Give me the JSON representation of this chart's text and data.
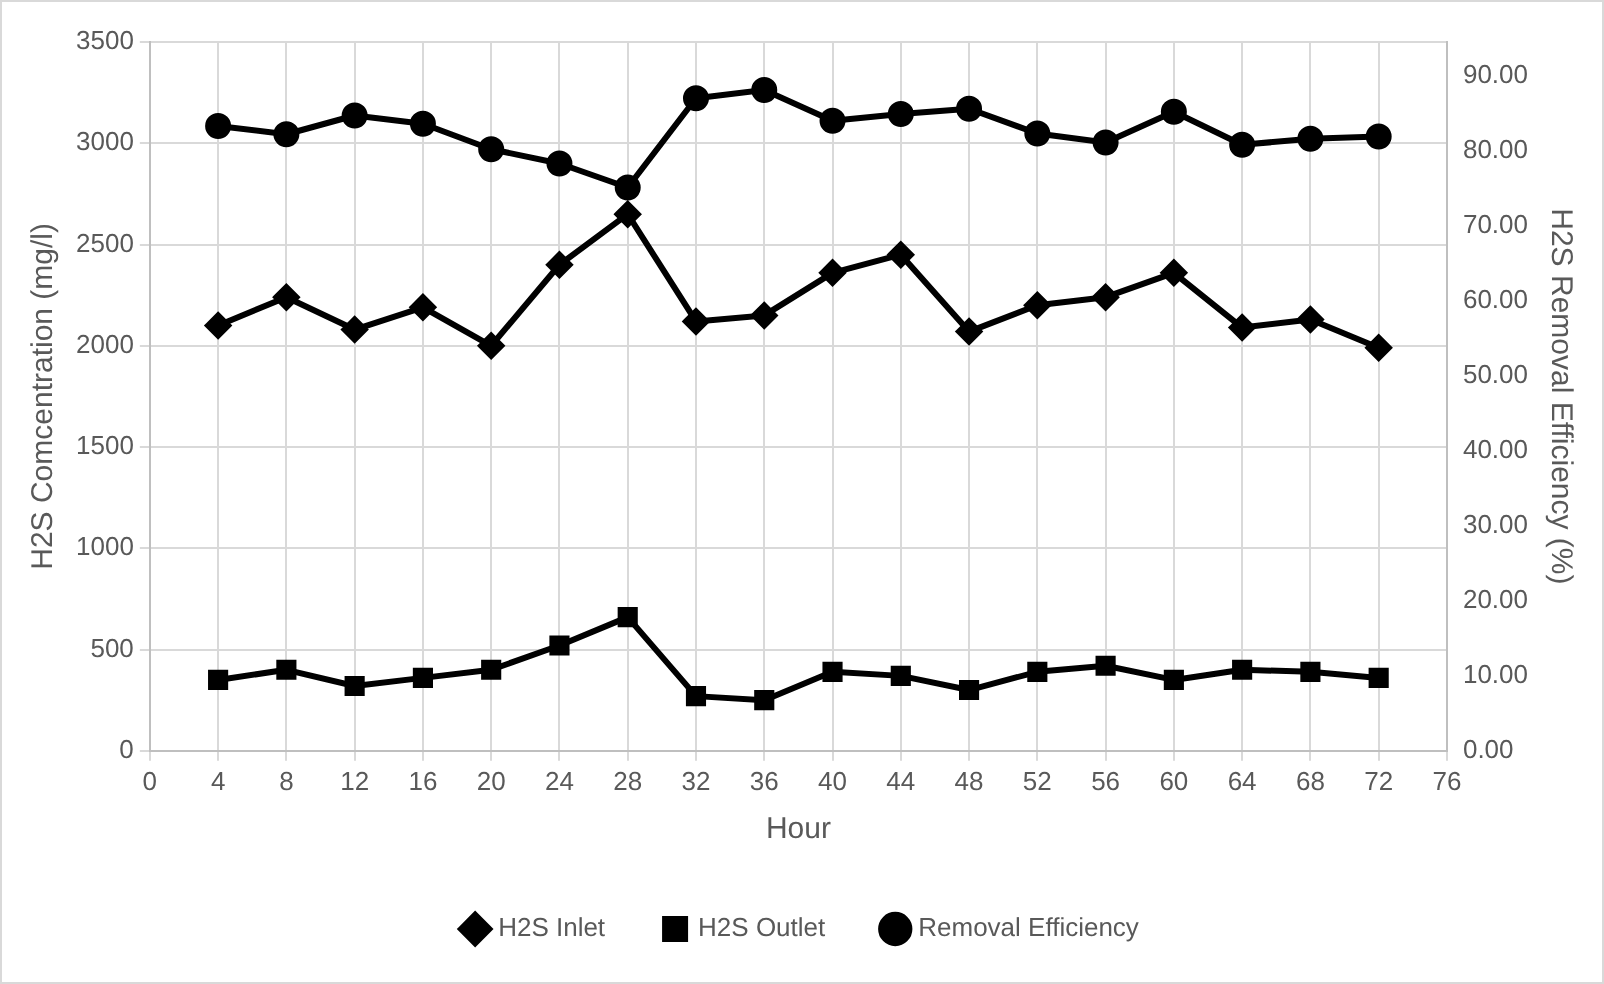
{
  "chart_data": {
    "type": "line",
    "xlabel": "Hour",
    "ylabel": "H2S Comcentration (mg/l)",
    "y2label": "H2S Removal Efficiency (%)",
    "x": [
      4,
      8,
      12,
      16,
      20,
      24,
      28,
      32,
      36,
      40,
      44,
      48,
      52,
      56,
      60,
      64,
      68,
      72
    ],
    "xlim": [
      0,
      76
    ],
    "xticks": [
      0,
      4,
      8,
      12,
      16,
      20,
      24,
      28,
      32,
      36,
      40,
      44,
      48,
      52,
      56,
      60,
      64,
      68,
      72,
      76
    ],
    "ylim": [
      0,
      3500
    ],
    "yticks": [
      0,
      500,
      1000,
      1500,
      2000,
      2500,
      3000,
      3500
    ],
    "y2lim": [
      0,
      94.5
    ],
    "y2ticks": [
      {
        "value": 0,
        "label": "0.00"
      },
      {
        "value": 10,
        "label": "10.00"
      },
      {
        "value": 20,
        "label": "20.00"
      },
      {
        "value": 30,
        "label": "30.00"
      },
      {
        "value": 40,
        "label": "40.00"
      },
      {
        "value": 50,
        "label": "50.00"
      },
      {
        "value": 60,
        "label": "60.00"
      },
      {
        "value": 70,
        "label": "70.00"
      },
      {
        "value": 80,
        "label": "80.00"
      },
      {
        "value": 90,
        "label": "90.00"
      }
    ],
    "grid": true,
    "legend": "bottom",
    "line_style": "solid",
    "series": [
      {
        "name": "H2S Inlet",
        "color": "#000000",
        "marker": "diamond",
        "values": [
          2100,
          2240,
          2080,
          2190,
          2000,
          2400,
          2650,
          2120,
          2150,
          2360,
          2450,
          2070,
          2200,
          2240,
          2360,
          2090,
          2130,
          1990
        ]
      },
      {
        "name": "H2S Outlet",
        "color": "#000000",
        "marker": "square",
        "values": [
          350,
          400,
          320,
          360,
          400,
          520,
          660,
          270,
          250,
          390,
          370,
          300,
          390,
          420,
          350,
          400,
          390,
          360
        ]
      },
      {
        "name": "Removal Efficiency",
        "color": "#000000",
        "marker": "circle",
        "axis": "y2",
        "values": [
          83.3,
          82.2,
          84.7,
          83.6,
          80.2,
          78.3,
          75.1,
          87.0,
          88.1,
          84.0,
          84.9,
          85.6,
          82.3,
          81.1,
          85.2,
          80.8,
          81.6,
          81.9
        ]
      }
    ]
  }
}
